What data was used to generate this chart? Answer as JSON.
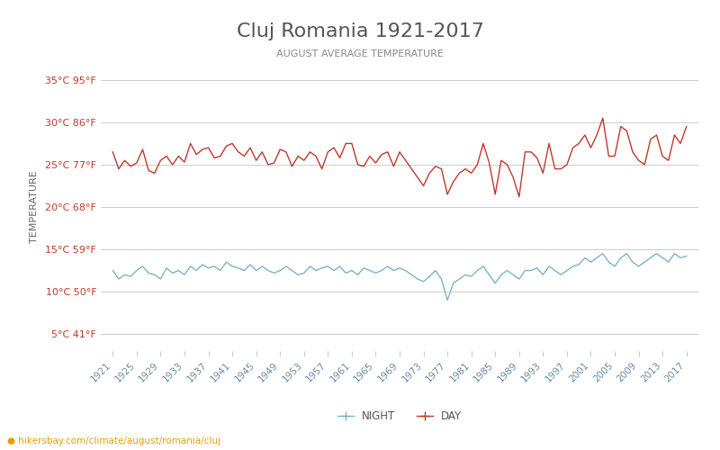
{
  "title": "Cluj Romania 1921-2017",
  "subtitle": "AUGUST AVERAGE TEMPERATURE",
  "ylabel": "TEMPERATURE",
  "watermark": "hikersbay.com/climate/august/romania/cluj",
  "years": [
    1921,
    1922,
    1923,
    1924,
    1925,
    1926,
    1927,
    1928,
    1929,
    1930,
    1931,
    1932,
    1933,
    1934,
    1935,
    1936,
    1937,
    1938,
    1939,
    1940,
    1941,
    1942,
    1943,
    1944,
    1945,
    1946,
    1947,
    1948,
    1949,
    1950,
    1951,
    1952,
    1953,
    1954,
    1955,
    1956,
    1957,
    1958,
    1959,
    1960,
    1961,
    1962,
    1963,
    1964,
    1965,
    1966,
    1967,
    1968,
    1969,
    1970,
    1971,
    1972,
    1973,
    1974,
    1975,
    1976,
    1977,
    1978,
    1979,
    1980,
    1981,
    1982,
    1983,
    1984,
    1985,
    1986,
    1987,
    1988,
    1989,
    1990,
    1991,
    1992,
    1993,
    1994,
    1995,
    1996,
    1997,
    1998,
    1999,
    2000,
    2001,
    2002,
    2003,
    2004,
    2005,
    2006,
    2007,
    2008,
    2009,
    2010,
    2011,
    2012,
    2013,
    2014,
    2015,
    2016,
    2017
  ],
  "day_temps": [
    26.5,
    24.5,
    25.5,
    24.8,
    25.2,
    26.8,
    24.3,
    24.0,
    25.5,
    26.0,
    25.0,
    26.0,
    25.3,
    27.5,
    26.2,
    26.8,
    27.0,
    25.8,
    26.0,
    27.2,
    27.5,
    26.5,
    26.0,
    27.0,
    25.5,
    26.5,
    25.0,
    25.2,
    26.8,
    26.5,
    24.8,
    26.0,
    25.5,
    26.5,
    26.0,
    24.5,
    26.5,
    27.0,
    25.8,
    27.5,
    27.5,
    25.0,
    24.8,
    26.0,
    25.2,
    26.2,
    26.5,
    24.8,
    26.5,
    25.5,
    24.5,
    23.5,
    22.5,
    24.0,
    24.8,
    24.5,
    21.5,
    23.0,
    24.0,
    24.5,
    24.0,
    25.0,
    27.5,
    25.2,
    21.5,
    25.5,
    25.0,
    23.5,
    21.2,
    26.5,
    26.5,
    25.8,
    24.0,
    27.5,
    24.5,
    24.5,
    25.0,
    27.0,
    27.5,
    28.5,
    27.0,
    28.5,
    30.5,
    26.0,
    26.0,
    29.5,
    29.0,
    26.5,
    25.5,
    25.0,
    28.0,
    28.5,
    26.0,
    25.5,
    28.5,
    27.5,
    29.5
  ],
  "night_temps": [
    12.5,
    11.5,
    12.0,
    11.8,
    12.5,
    13.0,
    12.2,
    12.0,
    11.5,
    12.8,
    12.2,
    12.5,
    12.0,
    13.0,
    12.5,
    13.2,
    12.8,
    13.0,
    12.5,
    13.5,
    13.0,
    12.8,
    12.5,
    13.2,
    12.5,
    13.0,
    12.5,
    12.2,
    12.5,
    13.0,
    12.5,
    12.0,
    12.2,
    13.0,
    12.5,
    12.8,
    13.0,
    12.5,
    13.0,
    12.2,
    12.5,
    12.0,
    12.8,
    12.5,
    12.2,
    12.5,
    13.0,
    12.5,
    12.8,
    12.5,
    12.0,
    11.5,
    11.2,
    11.8,
    12.5,
    11.5,
    9.0,
    11.0,
    11.5,
    12.0,
    11.8,
    12.5,
    13.0,
    12.0,
    11.0,
    12.0,
    12.5,
    12.0,
    11.5,
    12.5,
    12.5,
    12.8,
    12.0,
    13.0,
    12.5,
    12.0,
    12.5,
    13.0,
    13.2,
    14.0,
    13.5,
    14.0,
    14.5,
    13.5,
    13.0,
    14.0,
    14.5,
    13.5,
    13.0,
    13.5,
    14.0,
    14.5,
    14.0,
    13.5,
    14.5,
    14.0,
    14.2
  ],
  "day_color": "#c0392b",
  "night_color": "#7fb3c8",
  "grid_color": "#cccccc",
  "title_color": "#555555",
  "subtitle_color": "#888888",
  "ylabel_color": "#666666",
  "tick_color": "#c0392b",
  "background_color": "#ffffff",
  "yticks_c": [
    5,
    10,
    15,
    20,
    25,
    30,
    35
  ],
  "yticks_f": [
    41,
    50,
    59,
    68,
    77,
    86,
    95
  ],
  "ymin": 3,
  "ymax": 37,
  "xtick_years": [
    1921,
    1925,
    1929,
    1933,
    1937,
    1941,
    1945,
    1949,
    1953,
    1957,
    1961,
    1965,
    1969,
    1973,
    1977,
    1981,
    1985,
    1989,
    1993,
    1997,
    2001,
    2005,
    2009,
    2013,
    2017
  ]
}
